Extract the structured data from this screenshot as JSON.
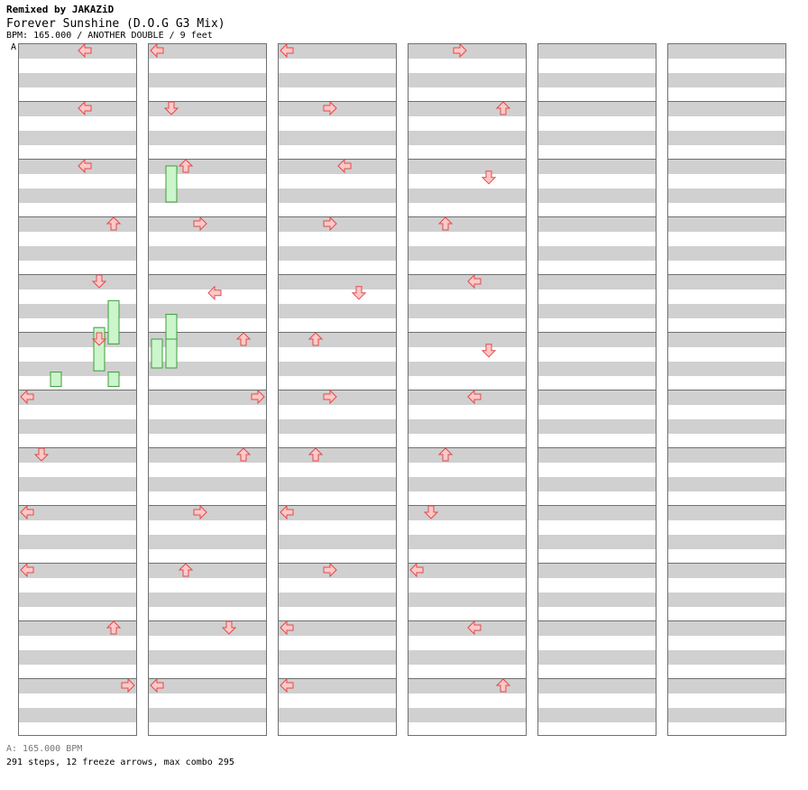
{
  "header": {
    "remixer": "Remixed by JAKAZiD",
    "title": "Forever Sunshine (D.O.G G3 Mix)",
    "info": "BPM: 165.000 / ANOTHER DOUBLE / 9 feet"
  },
  "section_marker": "A",
  "footer": {
    "bpm": "A: 165.000 BPM",
    "stats": "291 steps, 12 freeze arrows, max combo 295"
  },
  "colors": {
    "red_fill": "#ffc8c8",
    "red_stroke": "#e04a4a",
    "blue_fill": "#8ec3f5",
    "blue_stroke": "#3a82d0",
    "freeze_fill": "#ccf5cc",
    "freeze_stroke": "#3c9c3c",
    "lane_gray": "#d0d0d0",
    "border": "#707070"
  },
  "chart": {
    "columns": 6,
    "measures_per_column": 12,
    "lanes": 8,
    "lane_directions": [
      "left",
      "down",
      "up",
      "right",
      "left",
      "down",
      "up",
      "right"
    ],
    "notes": [
      [
        0,
        5,
        4,
        0,
        0
      ],
      [
        1,
        5,
        4,
        0,
        0
      ],
      [
        2,
        5,
        4,
        0,
        0
      ],
      [
        3,
        5,
        6,
        0,
        0
      ],
      [
        4,
        5,
        5,
        0,
        0
      ],
      [
        5,
        5,
        5,
        0,
        0
      ],
      [
        6,
        5,
        0,
        0,
        0
      ],
      [
        7,
        5,
        1,
        0,
        0
      ],
      [
        8,
        5,
        0,
        0,
        0
      ],
      [
        9,
        5,
        0,
        0,
        0
      ],
      [
        10,
        5,
        6,
        0,
        0
      ],
      [
        11,
        5,
        7,
        0,
        0
      ],
      [
        12,
        5,
        0,
        0,
        0
      ],
      [
        13,
        5,
        1,
        0,
        0
      ],
      [
        14,
        5,
        2,
        0,
        0
      ],
      [
        15,
        5,
        3,
        0,
        0
      ],
      [
        16,
        5,
        4,
        1,
        0
      ],
      [
        17,
        5,
        6,
        0,
        0
      ],
      [
        18,
        5,
        7,
        0,
        0
      ],
      [
        19,
        5,
        6,
        0,
        0
      ],
      [
        20,
        5,
        3,
        0,
        0
      ],
      [
        21,
        5,
        2,
        0,
        0
      ],
      [
        22,
        5,
        5,
        0,
        0
      ],
      [
        23,
        5,
        0,
        0,
        0
      ],
      [
        24,
        5,
        0,
        0,
        0
      ],
      [
        25,
        5,
        3,
        0,
        0
      ],
      [
        26,
        5,
        4,
        0,
        0
      ],
      [
        27,
        5,
        3,
        0,
        0
      ],
      [
        28,
        5,
        5,
        1,
        0
      ],
      [
        29,
        5,
        2,
        0,
        0
      ],
      [
        30,
        5,
        3,
        0,
        0
      ],
      [
        31,
        5,
        2,
        0,
        0
      ],
      [
        32,
        5,
        0,
        0,
        0
      ],
      [
        33,
        5,
        3,
        0,
        0
      ],
      [
        34,
        5,
        0,
        0,
        0
      ],
      [
        35,
        5,
        0,
        0,
        0
      ],
      [
        36,
        5,
        3,
        0,
        0
      ],
      [
        37,
        5,
        6,
        0,
        0
      ],
      [
        38,
        5,
        5,
        1,
        0
      ],
      [
        39,
        5,
        2,
        0,
        0
      ],
      [
        40,
        5,
        4,
        0,
        0
      ],
      [
        41,
        5,
        5,
        1,
        0
      ],
      [
        42,
        5,
        4,
        0,
        0
      ],
      [
        43,
        5,
        2,
        0,
        0
      ],
      [
        44,
        5,
        1,
        0,
        0
      ],
      [
        45,
        5,
        0,
        0,
        0
      ],
      [
        46,
        5,
        4,
        0,
        0
      ],
      [
        47,
        5,
        6,
        0,
        0
      ]
    ],
    "freezes": [
      [
        0,
        11,
        2,
        0,
        0,
        1
      ],
      [
        1,
        3,
        6,
        0,
        0,
        1
      ],
      [
        1,
        7,
        4,
        0,
        0,
        1
      ],
      [
        1,
        10,
        4,
        4,
        5,
        4
      ],
      [
        4,
        5,
        4,
        5,
        6,
        6
      ],
      [
        4,
        6,
        2,
        6,
        6,
        4
      ],
      [
        4,
        10,
        4,
        7,
        6,
        4
      ],
      [
        5,
        2,
        4,
        7,
        2,
        2
      ],
      [
        5,
        6,
        4,
        7,
        2,
        2
      ],
      [
        5,
        9,
        0,
        3,
        4,
        4
      ],
      [
        5,
        10,
        0,
        3,
        4,
        12
      ],
      [
        5,
        10,
        0,
        4,
        4,
        12
      ]
    ]
  }
}
